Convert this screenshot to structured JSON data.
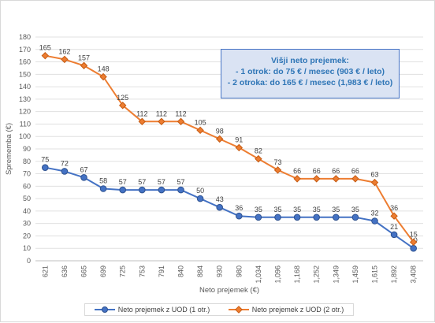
{
  "chart_data": {
    "type": "line",
    "xlabel": "Neto prejemek (€)",
    "ylabel": "Sprememba (€)",
    "ylim": [
      0,
      180
    ],
    "yticks": [
      0,
      10,
      20,
      30,
      40,
      50,
      60,
      70,
      80,
      90,
      100,
      110,
      120,
      130,
      140,
      150,
      160,
      170,
      180
    ],
    "grid": true,
    "legend_position": "bottom",
    "categories": [
      "621",
      "636",
      "665",
      "699",
      "725",
      "753",
      "791",
      "840",
      "884",
      "930",
      "980",
      "1,034",
      "1,096",
      "1,168",
      "1,252",
      "1,349",
      "1,459",
      "1,615",
      "1,892",
      "3,408"
    ],
    "series": [
      {
        "name": "Neto prejemek z UOD (1 otr.)",
        "color": "#4472c4",
        "marker": "circle",
        "values": [
          75,
          72,
          67,
          58,
          57,
          57,
          57,
          57,
          50,
          43,
          36,
          35,
          35,
          35,
          35,
          35,
          35,
          32,
          21,
          10
        ]
      },
      {
        "name": "Neto prejemek z UOD (2 otr.)",
        "color": "#ed7d31",
        "marker": "diamond",
        "values": [
          165,
          162,
          157,
          148,
          125,
          112,
          112,
          112,
          105,
          98,
          91,
          82,
          73,
          66,
          66,
          66,
          66,
          63,
          36,
          15
        ]
      }
    ],
    "annotation": {
      "lines": [
        "Višji neto prejemek:",
        "- 1 otrok: do 75 € / mesec (903 € / leto)",
        "- 2 otroka: do 165 € / mesec (1,983 € / leto)"
      ],
      "fill": "#dae3f3",
      "border": "#4472c4",
      "text_color": "#2e75b6"
    }
  }
}
